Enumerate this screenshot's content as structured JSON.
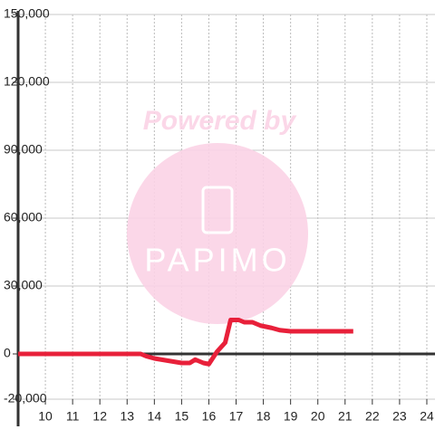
{
  "chart_data": {
    "type": "line",
    "watermark": {
      "title": "Powered by",
      "brand": "PAPIMO"
    },
    "x": [
      9,
      13.5,
      13.7,
      14,
      14.5,
      15,
      15.3,
      15.5,
      15.8,
      16.0,
      16.3,
      16.6,
      16.8,
      17.1,
      17.3,
      17.6,
      17.9,
      18.3,
      18.6,
      19,
      21.3
    ],
    "series": [
      {
        "color": "#e8203a",
        "values": [
          0,
          0,
          -1000,
          -2000,
          -3000,
          -4000,
          -4000,
          -2500,
          -4000,
          -4500,
          1000,
          5000,
          15000,
          15000,
          14000,
          14000,
          12500,
          11500,
          10500,
          10000,
          10000
        ]
      }
    ],
    "xlim": [
      9,
      24.3
    ],
    "xticks": [
      10,
      11,
      12,
      13,
      14,
      15,
      16,
      17,
      18,
      19,
      20,
      21,
      22,
      23,
      24
    ],
    "ylim": [
      -20000,
      150000
    ],
    "yticks": [
      {
        "value": -20000,
        "label": "-20,000"
      },
      {
        "value": 0,
        "label": "0"
      },
      {
        "value": 30000,
        "label": "30,000"
      },
      {
        "value": 60000,
        "label": "60,000"
      },
      {
        "value": 90000,
        "label": "90,000"
      },
      {
        "value": 120000,
        "label": "120,000"
      },
      {
        "value": 150000,
        "label": "150,000"
      }
    ],
    "grid": true
  }
}
